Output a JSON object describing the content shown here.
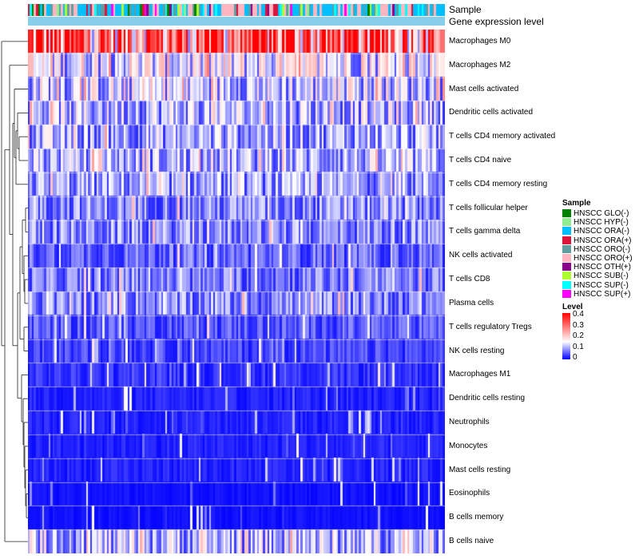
{
  "chart_data": {
    "type": "heatmap",
    "title": "",
    "annotations": [
      "Sample",
      "Gene expression level"
    ],
    "num_samples": 200,
    "rows": [
      {
        "label": "Macrophages M0",
        "mean": 0.3
      },
      {
        "label": "Macrophages M2",
        "mean": 0.14
      },
      {
        "label": "Mast cells activated",
        "mean": 0.12
      },
      {
        "label": "Dendritic cells activated",
        "mean": 0.11
      },
      {
        "label": "T cells CD4 memory activated",
        "mean": 0.1
      },
      {
        "label": "T cells CD4 naive",
        "mean": 0.1
      },
      {
        "label": "T cells CD4 memory resting",
        "mean": 0.09
      },
      {
        "label": "T cells follicular helper",
        "mean": 0.08
      },
      {
        "label": "T cells gamma delta",
        "mean": 0.08
      },
      {
        "label": "NK cells activated",
        "mean": 0.06
      },
      {
        "label": "T cells CD8",
        "mean": 0.07
      },
      {
        "label": "Plasma cells",
        "mean": 0.08
      },
      {
        "label": "T cells regulatory  Tregs",
        "mean": 0.05
      },
      {
        "label": "NK cells resting",
        "mean": 0.04
      },
      {
        "label": "Macrophages M1",
        "mean": 0.03
      },
      {
        "label": "Dendritic cells resting",
        "mean": 0.02
      },
      {
        "label": "Neutrophils",
        "mean": 0.02
      },
      {
        "label": "Monocytes",
        "mean": 0.02
      },
      {
        "label": "Mast cells resting",
        "mean": 0.02
      },
      {
        "label": "Eosinophils",
        "mean": 0.01
      },
      {
        "label": "B cells memory",
        "mean": 0.01
      },
      {
        "label": "B cells naive",
        "mean": 0.11
      }
    ],
    "color_scale": {
      "title": "Level",
      "min": 0,
      "max": 0.4,
      "ticks": [
        "0.4",
        "0.3",
        "0.2",
        "0.1",
        "0"
      ],
      "colors": {
        "low": "#0000ff",
        "mid": "#ffffff",
        "high": "#ff0000"
      }
    },
    "sample_legend": {
      "title": "Sample",
      "items": [
        {
          "label": "HNSCC GLO(-)",
          "color": "#008000"
        },
        {
          "label": "HNSCC HYP(-)",
          "color": "#90ee90"
        },
        {
          "label": "HNSCC ORA(-)",
          "color": "#00bfff"
        },
        {
          "label": "HNSCC ORA(+)",
          "color": "#dc143c"
        },
        {
          "label": "HNSCC ORO(-)",
          "color": "#5f9ea0"
        },
        {
          "label": "HNSCC ORO(+)",
          "color": "#ffb6c1"
        },
        {
          "label": "HNSCC OTH(+)",
          "color": "#8b008b"
        },
        {
          "label": "HNSCC SUB(-)",
          "color": "#adff2f"
        },
        {
          "label": "HNSCC SUP(-)",
          "color": "#00ffff"
        },
        {
          "label": "HNSCC SUP(+)",
          "color": "#ff00ff"
        }
      ]
    },
    "gene_expression_color": "#87ceeb"
  }
}
